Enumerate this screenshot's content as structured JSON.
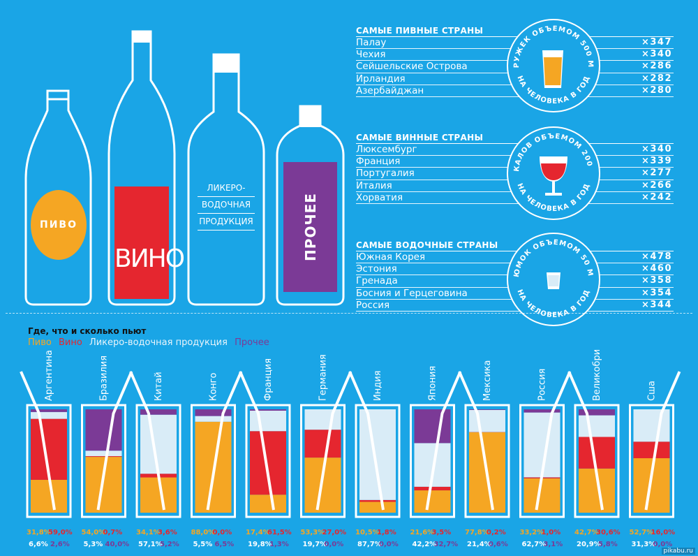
{
  "colors": {
    "background": "#1aa5e6",
    "beer": "#f5a623",
    "wine": "#e5262f",
    "liquor": "#d9ecf7",
    "other": "#7b3a96",
    "white": "#ffffff"
  },
  "bottles": {
    "beer_label": "ПИВО",
    "wine_label": "ВИНО",
    "liquor_label": [
      "ЛИКЕРО-",
      "ВОДОЧНАЯ",
      "ПРОДУКЦИЯ"
    ],
    "other_label": "ПРОЧЕЕ"
  },
  "rankings": [
    {
      "title": "САМЫЕ ПИВНЫЕ СТРАНЫ",
      "badge_top": "КРУЖЕК ОБЪЕМОМ 500 МЛ",
      "badge_bottom": "НА ЧЕЛОВЕКА В ГОД",
      "vessel": "mug-icon",
      "rows": [
        {
          "country": "Палау",
          "value": "×347"
        },
        {
          "country": "Чехия",
          "value": "×340"
        },
        {
          "country": "Сейшельские Острова",
          "value": "×286"
        },
        {
          "country": "Ирландия",
          "value": "×282"
        },
        {
          "country": "Азербайджан",
          "value": "×280"
        }
      ]
    },
    {
      "title": "САМЫЕ ВИННЫЕ СТРАНЫ",
      "badge_top": "БОКАЛОВ ОБЪЕМОМ 200 МЛ",
      "badge_bottom": "НА ЧЕЛОВЕКА В ГОД",
      "vessel": "wine-glass-icon",
      "rows": [
        {
          "country": "Люксембург",
          "value": "×340"
        },
        {
          "country": "Франция",
          "value": "×339"
        },
        {
          "country": "Португалия",
          "value": "×277"
        },
        {
          "country": "Италия",
          "value": "×266"
        },
        {
          "country": "Хорватия",
          "value": "×242"
        }
      ]
    },
    {
      "title": "САМЫЕ ВОДОЧНЫЕ СТРАНЫ",
      "badge_top": "РЮМОК ОБЪЕМОМ 50 МЛ",
      "badge_bottom": "НА ЧЕЛОВЕКА В ГОД",
      "vessel": "shot-glass-icon",
      "rows": [
        {
          "country": "Южная Корея",
          "value": "×478"
        },
        {
          "country": "Эстония",
          "value": "×460"
        },
        {
          "country": "Гренада",
          "value": "×358"
        },
        {
          "country": "Босния и Герцеговина",
          "value": "×354"
        },
        {
          "country": "Россия",
          "value": "×344"
        }
      ]
    }
  ],
  "legend": {
    "title": "Где, что и сколько пьют",
    "beer": "Пиво",
    "wine": "Вино",
    "liquor": "Ликеро-водочная продукция",
    "other": "Прочее"
  },
  "chart_data": {
    "type": "bar",
    "stacked": true,
    "title": "Где, что и сколько пьют",
    "categories": [
      "Аргентина",
      "Бразилия",
      "Китай",
      "Конго",
      "Франция",
      "Германия",
      "Индия",
      "Япония",
      "Мексика",
      "Россия",
      "Великобритания",
      "Сша"
    ],
    "series": [
      {
        "name": "Пиво",
        "values": [
          31.8,
          54.0,
          34.1,
          88.0,
          17.4,
          53.3,
          10.5,
          21.6,
          77.8,
          33.2,
          42.7,
          52.7
        ],
        "labels": [
          "31,8%",
          "54,0%",
          "34,1%",
          "88,0%",
          "17,4%",
          "53,3%",
          "10,5%",
          "21,6%",
          "77,8%",
          "33,2%",
          "42,7%",
          "52,7%"
        ]
      },
      {
        "name": "Вино",
        "values": [
          59.0,
          0.7,
          3.6,
          0.0,
          61.5,
          27.0,
          1.8,
          3.5,
          0.2,
          1.0,
          30.6,
          16.0
        ],
        "labels": [
          "59,0%",
          "0,7%",
          "3,6%",
          "0,0%",
          "61,5%",
          "27,0%",
          "1,8%",
          "3,5%",
          "0,2%",
          "1,0%",
          "30,6%",
          "16,0%"
        ]
      },
      {
        "name": "Ликеро-водочная продукция",
        "values": [
          6.6,
          5.3,
          57.1,
          5.5,
          19.8,
          19.7,
          87.7,
          42.2,
          21.4,
          62.7,
          20.9,
          31.3
        ],
        "labels": [
          "6,6%",
          "5,3%",
          "57,1%",
          "5,5%",
          "19,8%",
          "19,7%",
          "87,7%",
          "42,2%",
          "21,4%",
          "62,7%",
          "20,9%",
          "31,3%"
        ]
      },
      {
        "name": "Прочее",
        "values": [
          2.6,
          40.0,
          5.2,
          6.5,
          1.3,
          0.0,
          0.0,
          32.7,
          0.6,
          3.1,
          5.8,
          0.0
        ],
        "labels": [
          "2,6%",
          "40,0%",
          "5,2%",
          "6,5%",
          "1,3%",
          "0,0%",
          "0,0%",
          "32,7%",
          "0,6%",
          "3,1%",
          "5,8%",
          "0,0%"
        ]
      }
    ],
    "ylim": [
      0,
      100
    ],
    "grid": false,
    "legend_position": "top-left"
  },
  "footer": "pikabu.ru"
}
